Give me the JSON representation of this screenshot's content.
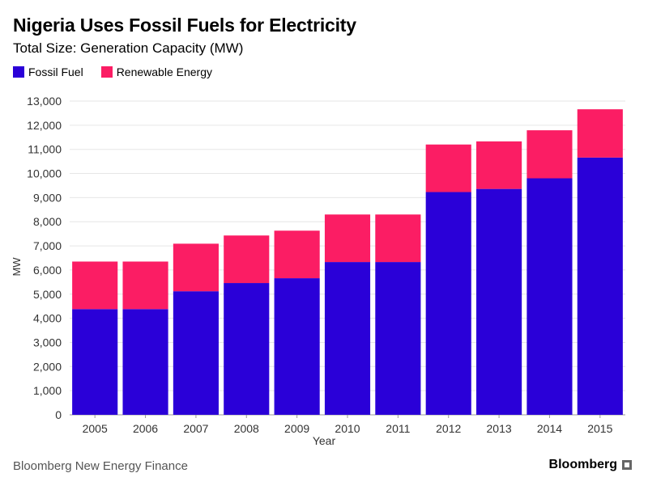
{
  "chart_data": {
    "type": "bar",
    "stacked": true,
    "title": "Nigeria Uses Fossil Fuels for Electricity",
    "subtitle": "Total Size: Generation Capacity (MW)",
    "xlabel": "Year",
    "ylabel": "MW",
    "ylim": [
      0,
      13000
    ],
    "yticks": [
      0,
      1000,
      2000,
      3000,
      4000,
      5000,
      6000,
      7000,
      8000,
      9000,
      10000,
      11000,
      12000,
      13000
    ],
    "ytick_labels": [
      "0",
      "1,000",
      "2,000",
      "3,000",
      "4,000",
      "5,000",
      "6,000",
      "7,000",
      "8,000",
      "9,000",
      "10,000",
      "11,000",
      "12,000",
      "13,000"
    ],
    "categories": [
      "2005",
      "2006",
      "2007",
      "2008",
      "2009",
      "2010",
      "2011",
      "2012",
      "2013",
      "2014",
      "2015"
    ],
    "series": [
      {
        "name": "Fossil Fuel",
        "color": "#2a00d8",
        "values": [
          4380,
          4380,
          5120,
          5460,
          5660,
          6330,
          6330,
          9230,
          9360,
          9800,
          10660
        ]
      },
      {
        "name": "Renewable Energy",
        "color": "#fb1d64",
        "values": [
          1970,
          1970,
          1970,
          1970,
          1970,
          1970,
          1970,
          1970,
          1970,
          1990,
          2000
        ]
      }
    ],
    "grid": true,
    "legend_position": "top-left"
  },
  "footer": {
    "source": "Bloomberg New Energy Finance",
    "brand": "Bloomberg"
  }
}
